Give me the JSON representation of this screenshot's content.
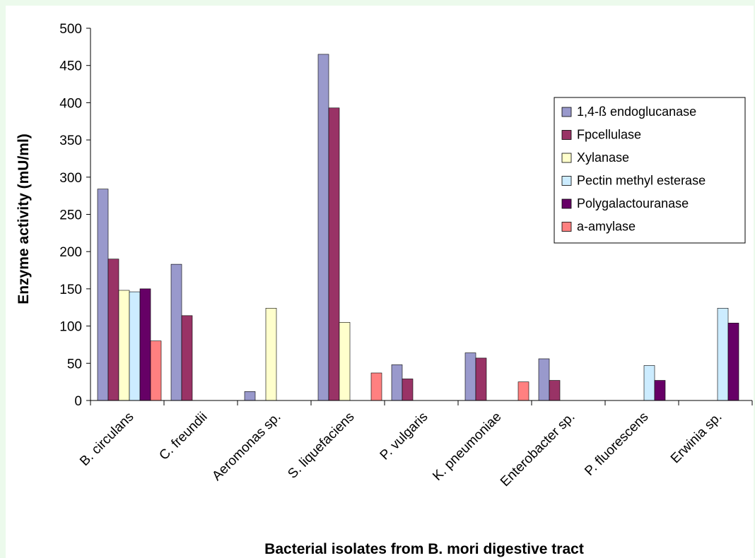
{
  "chart_data": {
    "type": "bar",
    "xlabel": "Bacterial isolates from B. mori digestive tract",
    "ylabel": "Enzyme activity (mU/ml)",
    "ylim": [
      0,
      500
    ],
    "yticks": [
      0,
      50,
      100,
      150,
      200,
      250,
      300,
      350,
      400,
      450,
      500
    ],
    "grid": false,
    "legend_position": "right",
    "categories": [
      "B. circulans",
      "C. freundii",
      "Aeromonas sp.",
      "S. liquefaciens",
      "P. vulgaris",
      "K. pneumoniae",
      "Enterobacter sp.",
      "P. fluorescens",
      "Erwinia sp."
    ],
    "series": [
      {
        "name": "1,4-ß endoglucanase",
        "color": "#9999cc",
        "values": [
          284,
          183,
          12,
          465,
          48,
          64,
          56,
          0,
          0
        ]
      },
      {
        "name": "Fpcellulase",
        "color": "#993366",
        "values": [
          190,
          114,
          0,
          393,
          29,
          57,
          27,
          0,
          0
        ]
      },
      {
        "name": "Xylanase",
        "color": "#ffffcc",
        "values": [
          148,
          0,
          124,
          105,
          0,
          0,
          0,
          0,
          0
        ]
      },
      {
        "name": "Pectin methyl esterase",
        "color": "#ccecff",
        "values": [
          146,
          0,
          0,
          0,
          0,
          0,
          0,
          47,
          124
        ]
      },
      {
        "name": "Polygalactouranase",
        "color": "#660066",
        "values": [
          150,
          0,
          0,
          0,
          0,
          0,
          0,
          27,
          104
        ]
      },
      {
        "name": "a-amylase",
        "color": "#ff8080",
        "values": [
          80,
          0,
          0,
          37,
          0,
          25,
          0,
          0,
          0
        ]
      }
    ]
  }
}
